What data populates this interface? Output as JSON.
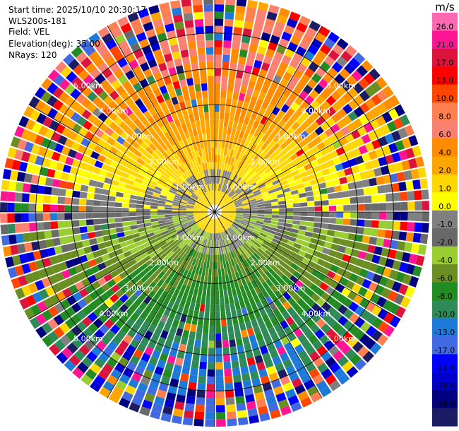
{
  "header": {
    "start_time": "Start time: 2025/10/10 20:30:17",
    "station": "WLS200s-181",
    "field": "Field: VEL",
    "elevation": "Elevation(deg): 35.00",
    "nrays": "NRays: 120"
  },
  "chart_data": {
    "type": "heatmap",
    "projection": "polar-ppi",
    "station": "WLS200s-181",
    "field": "VEL",
    "elevation_deg": 35.0,
    "n_rays": 120,
    "n_range_gates": 30,
    "max_range_km": 6.0,
    "range_rings": [
      {
        "range_km": 1.0,
        "label": "1.00km"
      },
      {
        "range_km": 2.0,
        "label": "2.00km"
      },
      {
        "range_km": 3.0,
        "label": "3.00km"
      },
      {
        "range_km": 4.0,
        "label": "4.00km"
      },
      {
        "range_km": 5.0,
        "label": "5.00km"
      }
    ],
    "ring_label_angles_deg": [
      45,
      135,
      225,
      315
    ],
    "spoke_angles_deg": [
      0,
      30,
      60,
      90,
      120,
      150,
      180,
      210,
      240,
      270,
      300,
      330
    ],
    "colorbar": {
      "unit": "m/s",
      "ticks": [
        "26.0",
        "21.0",
        "17.0",
        "13.0",
        "10.0",
        "8.0",
        "6.0",
        "4.0",
        "2.0",
        "1.0",
        "0.0",
        "-1.0",
        "-2.0",
        "-4.0",
        "-6.0",
        "-8.0",
        "-10.0",
        "-13.0",
        "-17.0",
        "-21.0",
        "-26.0",
        "-30.0"
      ],
      "bins": [
        {
          "min": -30,
          "max": -26,
          "color": "#1c1c64"
        },
        {
          "min": -26,
          "max": -21,
          "color": "#000080"
        },
        {
          "min": -21,
          "max": -17,
          "color": "#0000cd"
        },
        {
          "min": -17,
          "max": -13,
          "color": "#0000ff"
        },
        {
          "min": -13,
          "max": -10,
          "color": "#4169e1"
        },
        {
          "min": -10,
          "max": -8,
          "color": "#1e7ad8"
        },
        {
          "min": -8,
          "max": -6,
          "color": "#2e8b57"
        },
        {
          "min": -6,
          "max": -4,
          "color": "#228b22"
        },
        {
          "min": -4,
          "max": -2,
          "color": "#6b8e23"
        },
        {
          "min": -2,
          "max": -1,
          "color": "#9acd32"
        },
        {
          "min": -1,
          "max": 0,
          "color": "#696969"
        },
        {
          "min": 0,
          "max": 1,
          "color": "#808080"
        },
        {
          "min": 1,
          "max": 2,
          "color": "#ffff00"
        },
        {
          "min": 2,
          "max": 4,
          "color": "#ffd700"
        },
        {
          "min": 4,
          "max": 6,
          "color": "#ffa500"
        },
        {
          "min": 6,
          "max": 8,
          "color": "#ff8c00"
        },
        {
          "min": 8,
          "max": 10,
          "color": "#fa8072"
        },
        {
          "min": 10,
          "max": 13,
          "color": "#ff7f50"
        },
        {
          "min": 13,
          "max": 17,
          "color": "#ff4500"
        },
        {
          "min": 17,
          "max": 21,
          "color": "#ff0000"
        },
        {
          "min": 21,
          "max": 26,
          "color": "#dc143c"
        },
        {
          "min": 26,
          "max": 30,
          "color": "#ff1493"
        }
      ],
      "top_color": "#ff69b4"
    },
    "velocity_pattern": {
      "description_units": "m/s",
      "near_field_core": "yellow (≈1–4 m/s) inner disc with gray (≈0 m/s) ring",
      "north_sector": "positive velocities (orange/salmon, ≈4–10 m/s) increasing with range",
      "south_sector": "negative velocities (green/blue, ≈-2 to -10 m/s) increasing with range",
      "outer_ranges": "highly variable noisy gates mixing all bins"
    }
  }
}
